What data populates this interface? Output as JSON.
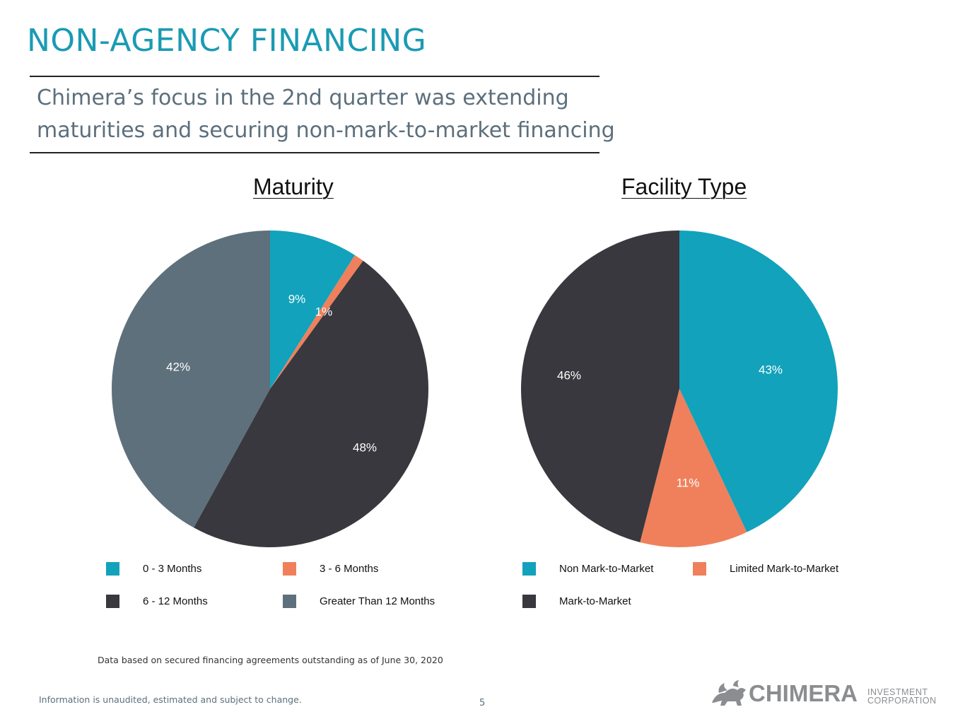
{
  "header": {
    "title": "NON-AGENCY FINANCING",
    "subtitle_line1": "Chimera’s focus in the 2nd quarter was extending",
    "subtitle_line2": "maturities and securing non-mark-to-market financing"
  },
  "chart_data": [
    {
      "type": "pie",
      "title": "Maturity",
      "categories": [
        "0 - 3 Months",
        "3 - 6 Months",
        "6 - 12 Months",
        "Greater Than 12 Months"
      ],
      "values": [
        9,
        1,
        48,
        42
      ],
      "labels": [
        "9%",
        "1%",
        "48%",
        "42%"
      ],
      "colors": [
        "#12a2bb",
        "#ef805b",
        "#38383e",
        "#5e707c"
      ],
      "label_colors": [
        "#ffffff",
        "#ffffff",
        "#ffffff",
        "#ffffff"
      ],
      "legend_placement": "bottom"
    },
    {
      "type": "pie",
      "title": "Facility Type",
      "categories": [
        "Non Mark-to-Market",
        "Limited Mark-to-Market",
        "Mark-to-Market"
      ],
      "values": [
        43,
        11,
        46
      ],
      "labels": [
        "43%",
        "11%",
        "46%"
      ],
      "colors": [
        "#12a2bb",
        "#ef805b",
        "#38383e"
      ],
      "label_colors": [
        "#ffffff",
        "#ffffff",
        "#ffffff"
      ],
      "legend_placement": "bottom"
    }
  ],
  "footnote": "Data based on secured financing agreements outstanding  as of June 30, 2020",
  "footer": {
    "disclaimer": "Information is unaudited, estimated and subject to change.",
    "page_number": "5",
    "logo_word": "CHIMERA",
    "logo_sub1": "INVESTMENT",
    "logo_sub2": "CORPORATION",
    "logo_color": "#8b8d90"
  }
}
